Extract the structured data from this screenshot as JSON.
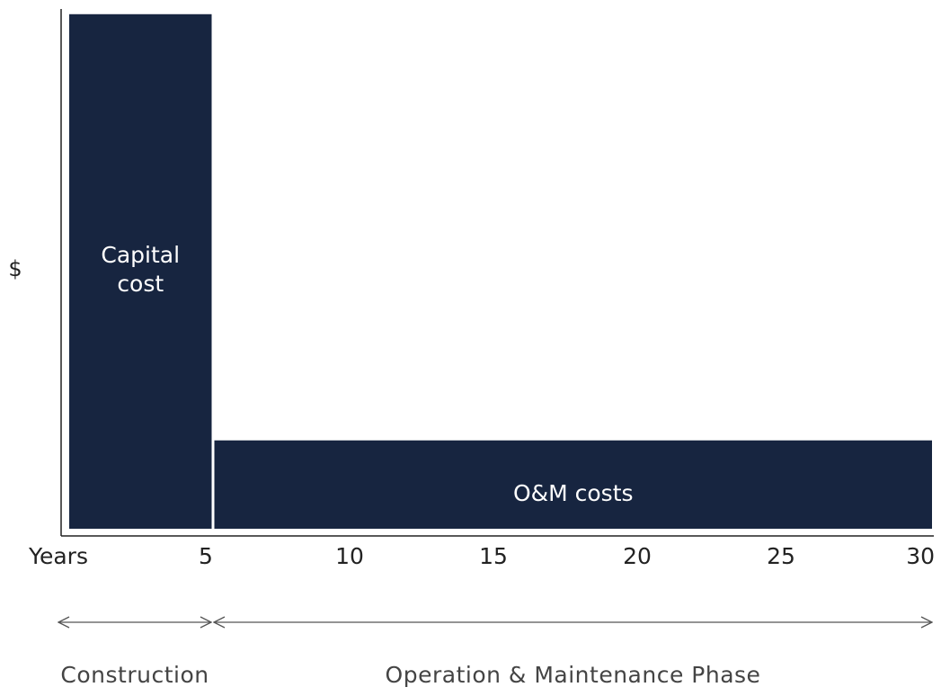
{
  "chart_data": {
    "type": "bar",
    "ylabel": "$",
    "xlabel": "Years",
    "xlim": [
      0,
      30
    ],
    "xticks": [
      5,
      10,
      15,
      20,
      25,
      30
    ],
    "ylim": [
      0,
      100
    ],
    "color": "#172540",
    "bars": [
      {
        "label": "Capital cost",
        "x": [
          0,
          5
        ],
        "value": 99
      },
      {
        "label": "O&M costs",
        "x": [
          5,
          30
        ],
        "value": 17
      }
    ],
    "phases": [
      {
        "label": "Construction",
        "x": [
          0,
          5
        ]
      },
      {
        "label": "Operation & Maintenance Phase",
        "x": [
          5,
          30
        ]
      }
    ]
  }
}
